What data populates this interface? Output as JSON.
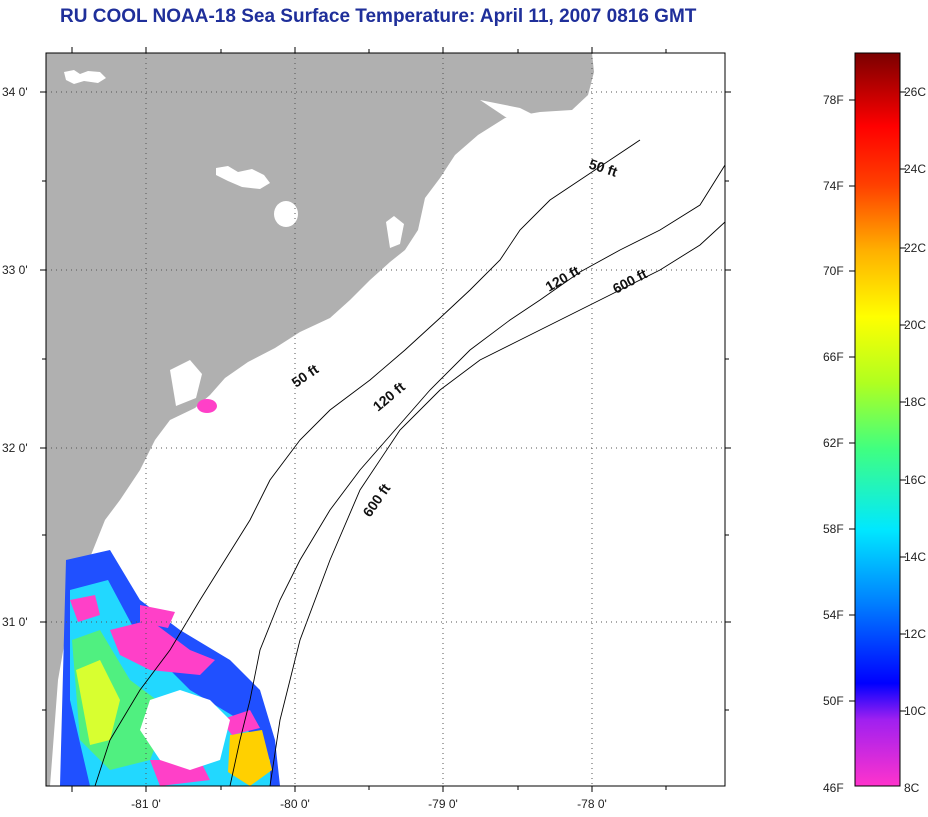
{
  "title": "RU COOL  NOAA-18  Sea Surface Temperature:  April 11, 2007 0816 GMT",
  "lat_labels": [
    "34 0'",
    "33 0'",
    "32 0'",
    "31 0'"
  ],
  "lon_labels": [
    "-81 0'",
    "-80 0'",
    "-79 0'",
    "-78 0'"
  ],
  "isobaths": [
    "50 ft",
    "50 ft",
    "120 ft",
    "120 ft",
    "600 ft",
    "600 ft"
  ],
  "colorbar": {
    "fahrenheit": [
      "78F",
      "74F",
      "70F",
      "66F",
      "62F",
      "58F",
      "54F",
      "50F",
      "46F"
    ],
    "celsius": [
      "26C",
      "24C",
      "22C",
      "20C",
      "18C",
      "16C",
      "14C",
      "12C",
      "10C",
      "8C"
    ]
  },
  "colors": {
    "land": "#b0b0b0",
    "title": "#1f2f9a"
  }
}
